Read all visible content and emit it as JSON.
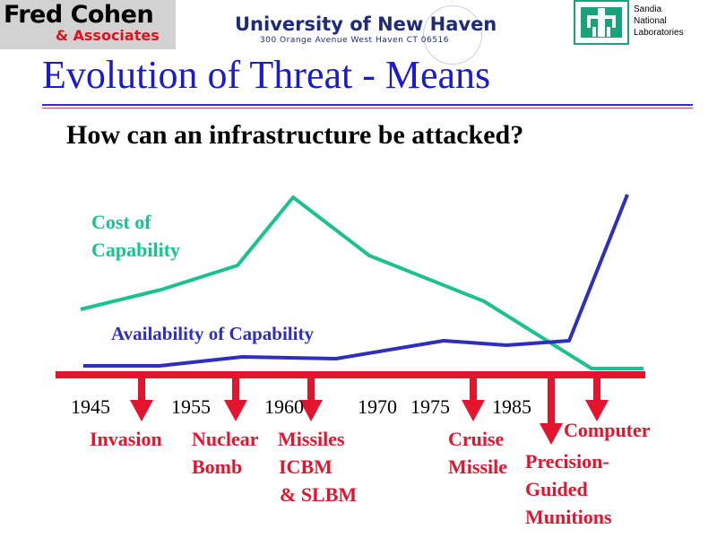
{
  "header": {
    "brand_name": "Fred Cohen",
    "brand_sub": "& Associates",
    "university": "University of New Haven",
    "address": "300 Orange Avenue  West Haven CT  06516",
    "sandia_lines": [
      "Sandia",
      "National",
      "Laboratories"
    ]
  },
  "slide": {
    "title": "Evolution of Threat -  Means",
    "subtitle": "How can an infrastructure be attacked?"
  },
  "labels": {
    "cost_line1": "Cost of",
    "cost_line2": "Capability",
    "availability": "Availability of Capability"
  },
  "timeline": {
    "years": [
      "1945",
      "1955",
      "1960",
      "1970",
      "1975",
      "1985"
    ],
    "events": [
      {
        "lines": [
          "Invasion"
        ]
      },
      {
        "lines": [
          "Nuclear",
          "Bomb"
        ]
      },
      {
        "lines": [
          "Missiles",
          "ICBM",
          "& SLBM"
        ]
      },
      {
        "lines": [
          "Cruise",
          "Missile"
        ]
      },
      {
        "lines": [
          "Precision-",
          "Guided",
          "Munitions"
        ]
      },
      {
        "lines": [
          "Computer"
        ]
      }
    ]
  },
  "colors": {
    "cost": "#19c28f",
    "availability": "#2f2fbf",
    "timeline": "#e3142d",
    "title": "#1a1ad0"
  }
}
